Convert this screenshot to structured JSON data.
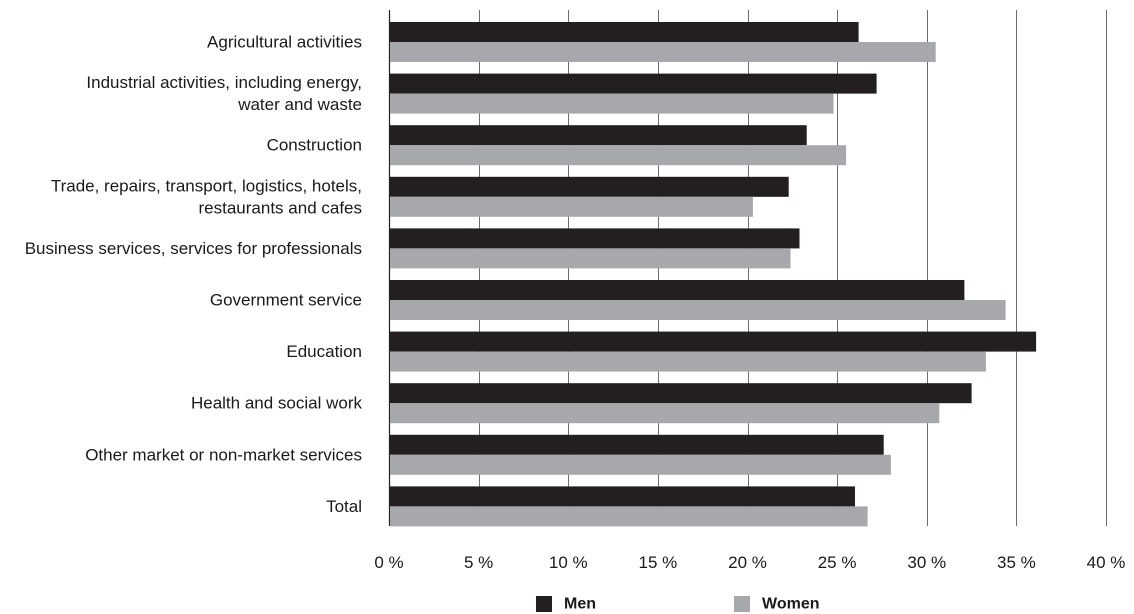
{
  "chart_data": {
    "type": "bar",
    "orientation": "horizontal",
    "categories": [
      [
        "Agricultural activities"
      ],
      [
        "Industrial activities, including energy,",
        "water and waste"
      ],
      [
        "Construction"
      ],
      [
        "Trade, repairs, transport, logistics, hotels,",
        "restaurants and cafes"
      ],
      [
        "Business services, services for professionals"
      ],
      [
        "Government service"
      ],
      [
        "Education"
      ],
      [
        "Health and social work"
      ],
      [
        "Other market or non-market services"
      ],
      [
        "Total"
      ]
    ],
    "series": [
      {
        "name": "Men",
        "color": "#231f20",
        "values": [
          26.2,
          27.2,
          23.3,
          22.3,
          22.9,
          32.1,
          36.1,
          32.5,
          27.6,
          26.0
        ]
      },
      {
        "name": "Women",
        "color": "#a6a8ab",
        "values": [
          30.5,
          24.8,
          25.5,
          20.3,
          22.4,
          34.4,
          33.3,
          30.7,
          28.0,
          26.7
        ]
      }
    ],
    "xlim": [
      0,
      40
    ],
    "xticks": [
      0,
      5,
      10,
      15,
      20,
      25,
      30,
      35,
      40
    ],
    "xtick_labels": [
      "0 %",
      "5 %",
      "10 %",
      "15 %",
      "20 %",
      "25 %",
      "30 %",
      "35 %",
      "40 %"
    ],
    "grid": "vertical",
    "legend_position": "bottom",
    "title": "",
    "xlabel": "",
    "ylabel": ""
  }
}
